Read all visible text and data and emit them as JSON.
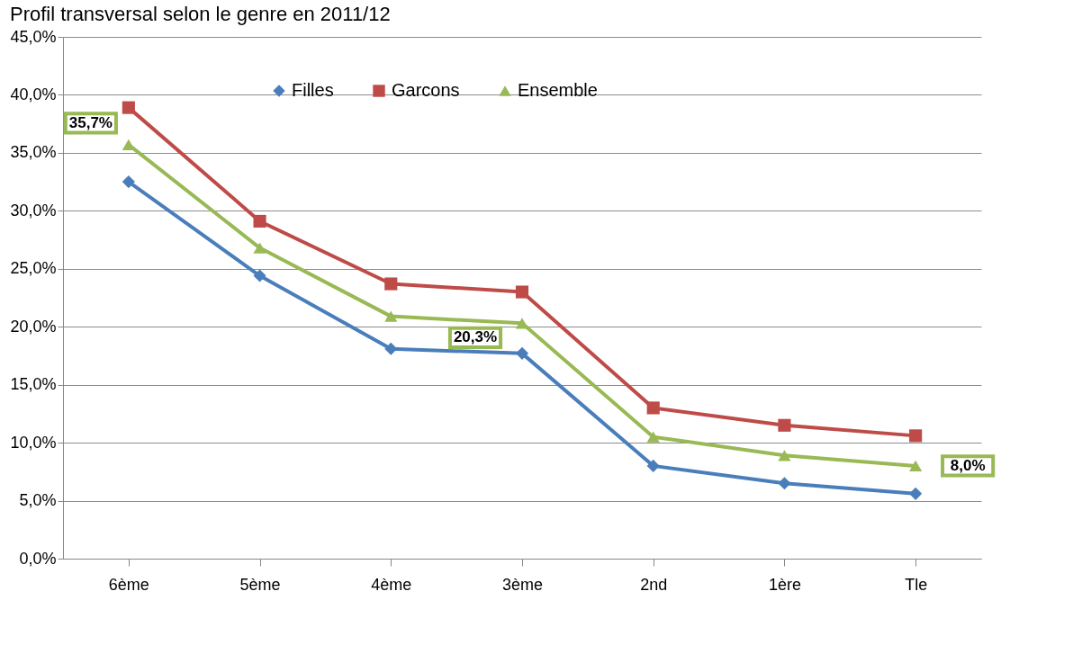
{
  "chart_data": {
    "type": "line",
    "title": "Profil transversal selon le genre en 2011/12",
    "categories": [
      "6ème",
      "5ème",
      "4ème",
      "3ème",
      "2nd",
      "1ère",
      "Tle"
    ],
    "series": [
      {
        "name": "Filles",
        "color": "#4a7ebb",
        "marker": "diamond",
        "values": [
          32.5,
          24.4,
          18.1,
          17.7,
          8.0,
          6.5,
          5.6
        ]
      },
      {
        "name": "Garcons",
        "color": "#be4b48",
        "marker": "square",
        "values": [
          38.9,
          29.1,
          23.7,
          23.0,
          13.0,
          11.5,
          10.6
        ]
      },
      {
        "name": "Ensemble",
        "color": "#98b954",
        "marker": "triangle",
        "values": [
          35.7,
          26.8,
          20.9,
          20.3,
          10.5,
          8.9,
          8.0
        ],
        "value_labels": [
          "35,7%",
          null,
          null,
          "20,3%",
          null,
          null,
          "8,0%"
        ]
      }
    ],
    "ylim": [
      0,
      45
    ],
    "yticks": [
      {
        "value": 0,
        "label": "0,0%"
      },
      {
        "value": 5,
        "label": "5,0%"
      },
      {
        "value": 10,
        "label": "10,0%"
      },
      {
        "value": 15,
        "label": "15,0%"
      },
      {
        "value": 20,
        "label": "20,0%"
      },
      {
        "value": 25,
        "label": "25,0%"
      },
      {
        "value": 30,
        "label": "30,0%"
      },
      {
        "value": 35,
        "label": "35,0%"
      },
      {
        "value": 40,
        "label": "40,0%"
      },
      {
        "value": 45,
        "label": "45,0%"
      }
    ],
    "grid": "y",
    "legend": "top",
    "line_style": "solid"
  }
}
